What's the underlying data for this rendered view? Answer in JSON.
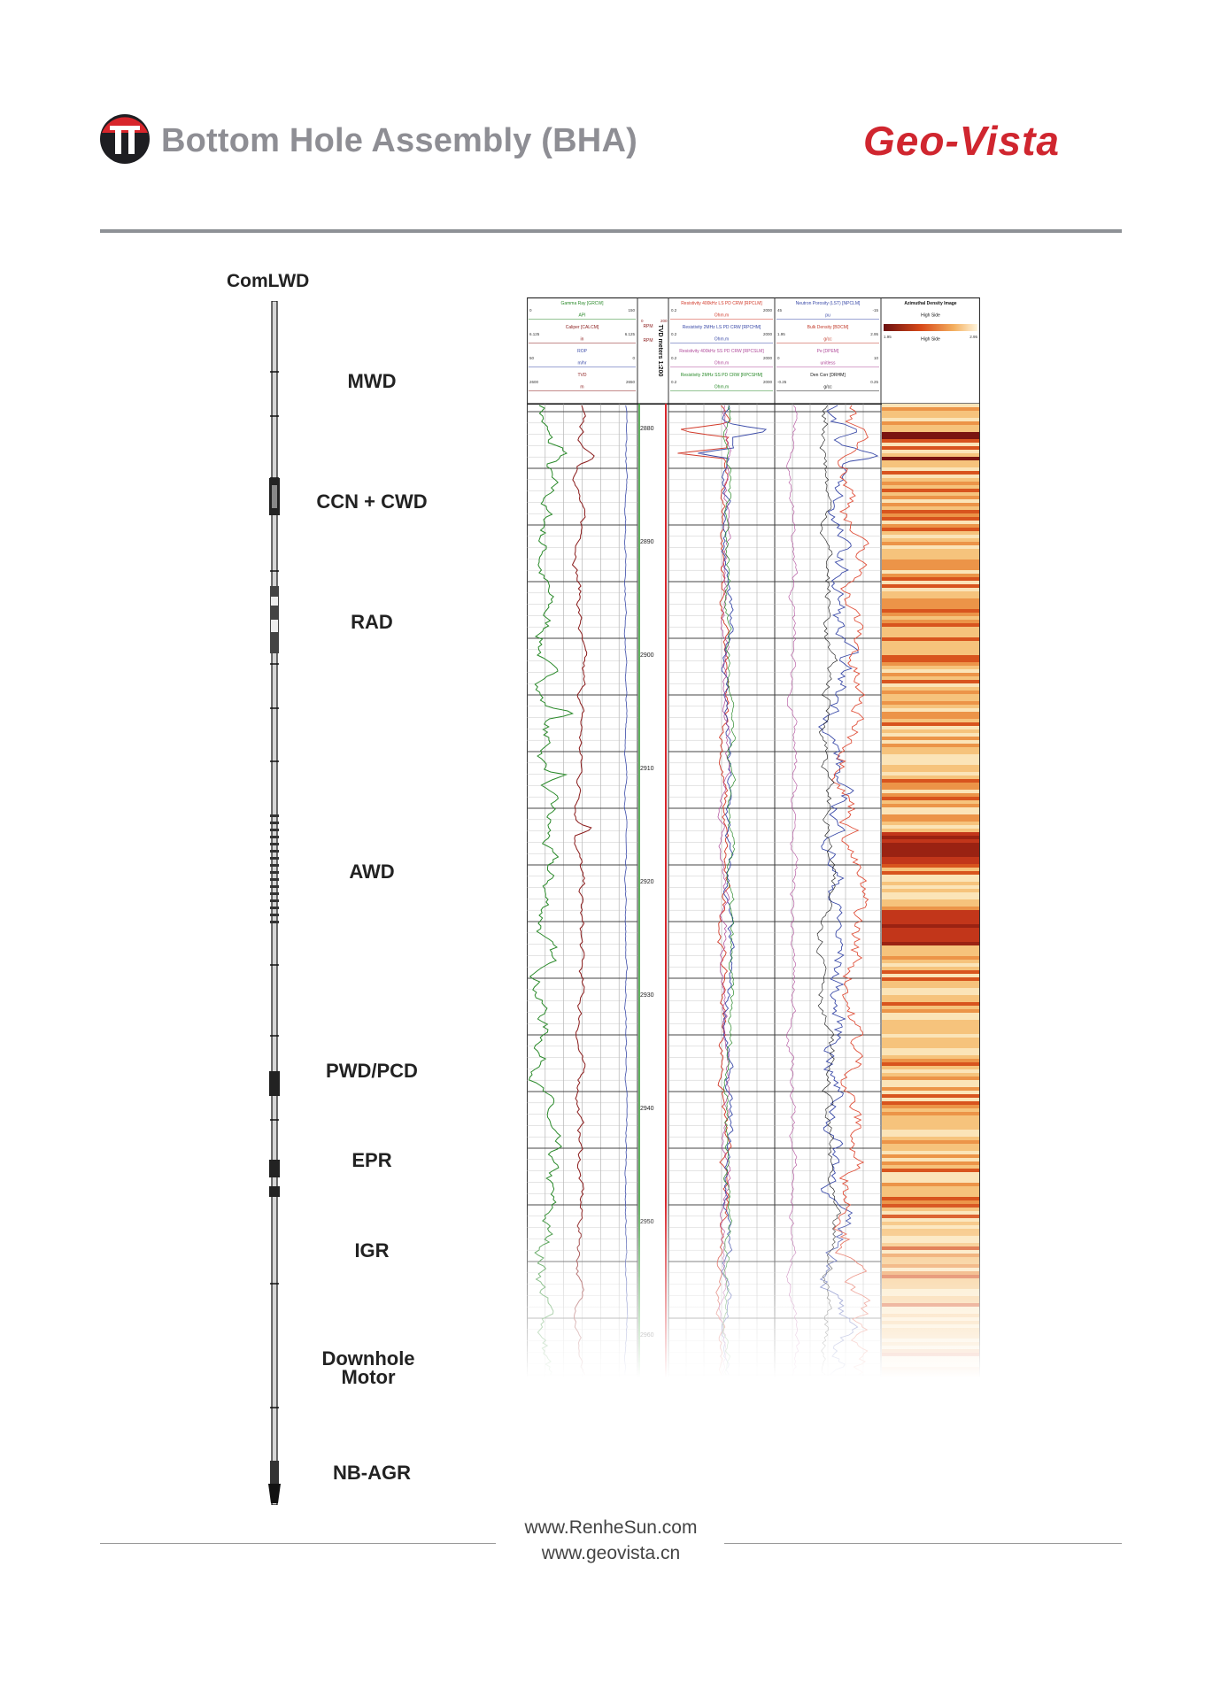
{
  "header": {
    "title": "Bottom Hole Assembly (BHA)",
    "brand": "Geo-Vista",
    "logo_icon": "red-black-circle-logo",
    "brand_color": "#d0262f"
  },
  "bha": {
    "caption": "ComLWD",
    "sections": [
      {
        "label": "MWD"
      },
      {
        "label": "CCN + CWD"
      },
      {
        "label": "RAD"
      },
      {
        "label": "AWD"
      },
      {
        "label": "PWD/PCD"
      },
      {
        "label": "EPR"
      },
      {
        "label": "IGR"
      },
      {
        "label": "Downhole Motor"
      },
      {
        "label": "NB-AGR"
      }
    ]
  },
  "log": {
    "tracks": [
      {
        "header": [
          "Gamma Ray [GRCW]",
          "API",
          "Caliper [CALCM]",
          "in",
          "ROP",
          "m/hr",
          "TVD",
          "m"
        ],
        "scale": [
          "0",
          "150",
          "6.125",
          "6.125",
          "50",
          "0",
          "2600",
          "2650"
        ]
      },
      {
        "header": [
          "RPM",
          "RPM",
          "TVD meters 1:200"
        ],
        "scale": [
          "0",
          "200"
        ]
      },
      {
        "header": [
          "Resistivity 400kHz LS PD CRW [RPCLM]",
          "Ohm.m",
          "Resistivity 2MHz LS PD CRW [RPCHM]",
          "Ohm.m",
          "Resistivity 400kHz SS PD CRW [RPCSLM]",
          "Ohm.m",
          "Resistivity 2MHz SS PD CRW [RPCSHM]",
          "Ohm.m"
        ],
        "scale": [
          "0.2",
          "2000",
          "0.2",
          "2000",
          "0.2",
          "2000",
          "0.2",
          "2000"
        ]
      },
      {
        "header": [
          "Neutron Porosity (LST) [NPCLM]",
          "pu",
          "Bulk Density [BDCM]",
          "g/cc",
          "Pe [DPEM]",
          "unitless",
          "Den Corr [DRHM]",
          "g/cc"
        ],
        "scale": [
          "45",
          "-15",
          "1.95",
          "2.95",
          "0",
          "10",
          "-0.25",
          "0.25"
        ]
      },
      {
        "header": [
          "Azimuthal Density Image",
          "High Side",
          "Low Side",
          "High Side"
        ],
        "scale": [
          "1.95",
          "2.95"
        ]
      }
    ],
    "depths": [
      "2880",
      "2890",
      "2900",
      "2910",
      "2920",
      "2930",
      "2940",
      "2950",
      "2960"
    ]
  },
  "footer": {
    "links": [
      "www.RenheSun.com",
      "www.geovista.cn"
    ]
  }
}
